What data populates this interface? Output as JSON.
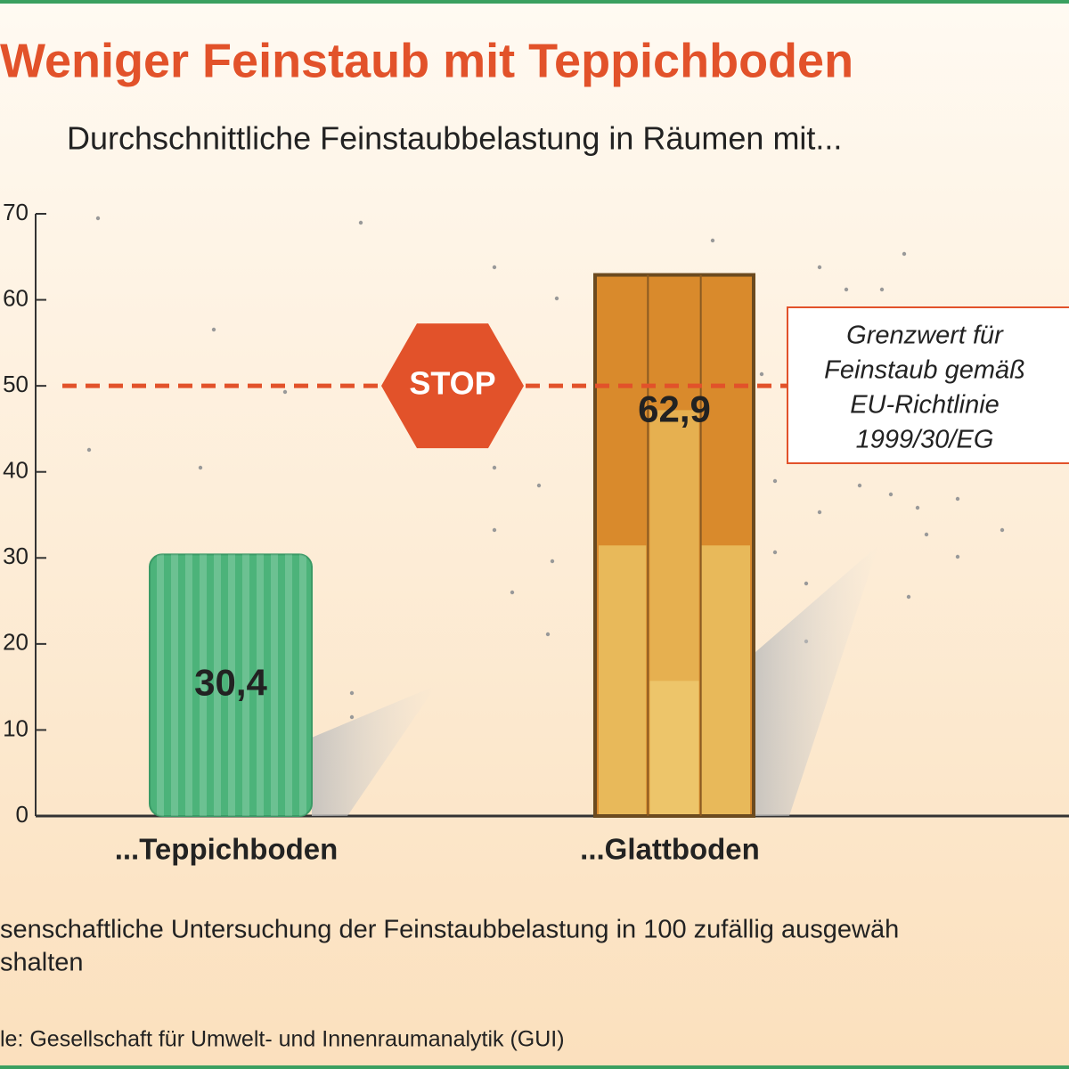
{
  "chart_data": {
    "type": "bar",
    "title": "Weniger Feinstaub mit Teppichboden",
    "subtitle": "Durchschnittliche Feinstaubbelastung in Räumen mit...",
    "categories": [
      "...Teppichboden",
      "...Glattboden"
    ],
    "values": [
      30.4,
      62.9
    ],
    "value_labels": [
      "30,4",
      "62,9"
    ],
    "colors": [
      "#4cb37a",
      "#d98a2c"
    ],
    "ylim": [
      0,
      70
    ],
    "yticks": [
      0,
      10,
      20,
      30,
      40,
      50,
      60,
      70
    ],
    "threshold": {
      "value": 50,
      "color": "#e2522a",
      "sign": "STOP",
      "annotation": [
        "Grenzwert für",
        "Feinstaub gemäß",
        "EU-Richtlinie",
        "1999/30/EG"
      ]
    },
    "footnotes": [
      "senschaftliche Untersuchung der Feinstaubbelastung in 100 zufällig ausgewäh",
      "shalten"
    ],
    "source": "le: Gesellschaft für Umwelt- und Innenraumanalytik (GUI)"
  }
}
